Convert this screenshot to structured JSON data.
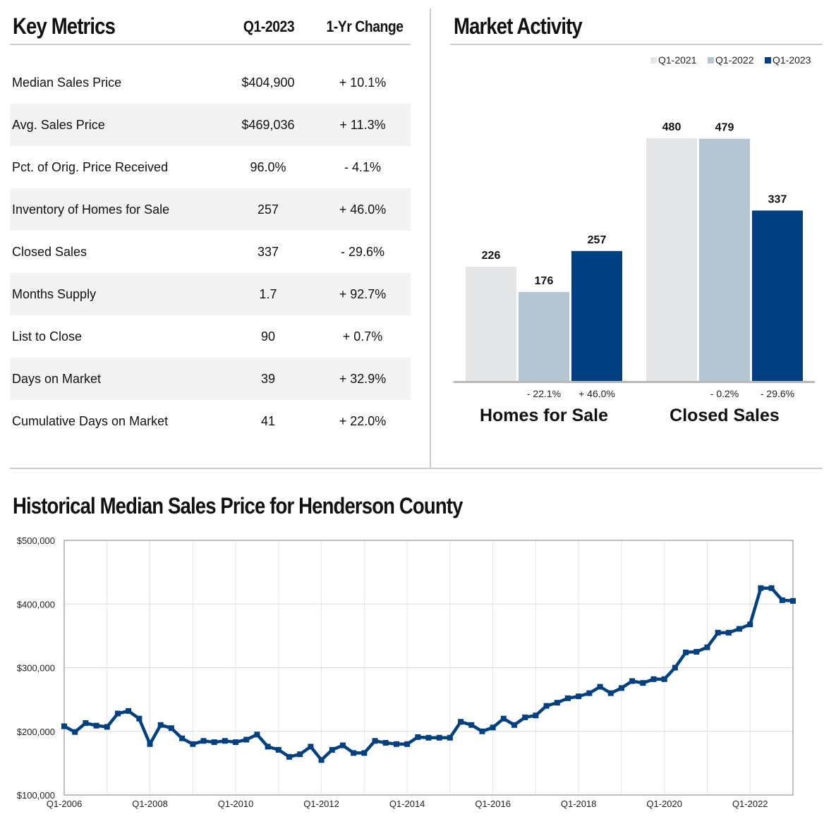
{
  "key_metrics": {
    "title": "Key Metrics",
    "col_period": "Q1-2023",
    "col_change": "1-Yr Change",
    "rows": [
      {
        "metric": "Median Sales Price",
        "value": "$404,900",
        "change": "+ 10.1%"
      },
      {
        "metric": "Avg. Sales Price",
        "value": "$469,036",
        "change": "+ 11.3%"
      },
      {
        "metric": "Pct. of Orig. Price Received",
        "value": "96.0%",
        "change": "- 4.1%"
      },
      {
        "metric": "Inventory of Homes for Sale",
        "value": "257",
        "change": "+ 46.0%"
      },
      {
        "metric": "Closed Sales",
        "value": "337",
        "change": "- 29.6%"
      },
      {
        "metric": "Months Supply",
        "value": "1.7",
        "change": "+ 92.7%"
      },
      {
        "metric": "List to Close",
        "value": "90",
        "change": "+ 0.7%"
      },
      {
        "metric": "Days on Market",
        "value": "39",
        "change": "+ 32.9%"
      },
      {
        "metric": "Cumulative Days on Market",
        "value": "41",
        "change": "+ 22.0%"
      }
    ]
  },
  "market_activity": {
    "title": "Market Activity"
  },
  "history": {
    "title": "Historical Median Sales Price for Henderson County"
  },
  "chart_data": [
    {
      "type": "bar",
      "categories": [
        "Homes for Sale",
        "Closed Sales"
      ],
      "series": [
        {
          "name": "Q1-2021",
          "values": [
            226,
            480
          ],
          "color": "#e4e6e8"
        },
        {
          "name": "Q1-2022",
          "values": [
            176,
            479
          ],
          "color": "#b5c6d3"
        },
        {
          "name": "Q1-2023",
          "values": [
            257,
            337
          ],
          "color": "#004080"
        }
      ],
      "changes": [
        [
          "- 22.1%",
          "+ 46.0%"
        ],
        [
          "- 0.2%",
          "- 29.6%"
        ]
      ],
      "ylim": [
        0,
        480
      ],
      "legend": "top-right"
    },
    {
      "type": "line",
      "ylim": [
        100000,
        500000
      ],
      "yticks": [
        "$100,000",
        "$200,000",
        "$300,000",
        "$400,000",
        "$500,000"
      ],
      "yticks_values": [
        100000,
        200000,
        300000,
        400000,
        500000
      ],
      "xticks": [
        "Q1-2006",
        "Q1-2008",
        "Q1-2010",
        "Q1-2012",
        "Q1-2014",
        "Q1-2016",
        "Q1-2018",
        "Q1-2020",
        "Q1-2022"
      ],
      "grid": true,
      "color": "#004080",
      "x": [
        "Q1-2006",
        "Q2-2006",
        "Q3-2006",
        "Q4-2006",
        "Q1-2007",
        "Q2-2007",
        "Q3-2007",
        "Q4-2007",
        "Q1-2008",
        "Q2-2008",
        "Q3-2008",
        "Q4-2008",
        "Q1-2009",
        "Q2-2009",
        "Q3-2009",
        "Q4-2009",
        "Q1-2010",
        "Q2-2010",
        "Q3-2010",
        "Q4-2010",
        "Q1-2011",
        "Q2-2011",
        "Q3-2011",
        "Q4-2011",
        "Q1-2012",
        "Q2-2012",
        "Q3-2012",
        "Q4-2012",
        "Q1-2013",
        "Q2-2013",
        "Q3-2013",
        "Q4-2013",
        "Q1-2014",
        "Q2-2014",
        "Q3-2014",
        "Q4-2014",
        "Q1-2015",
        "Q2-2015",
        "Q3-2015",
        "Q4-2015",
        "Q1-2016",
        "Q2-2016",
        "Q3-2016",
        "Q4-2016",
        "Q1-2017",
        "Q2-2017",
        "Q3-2017",
        "Q4-2017",
        "Q1-2018",
        "Q2-2018",
        "Q3-2018",
        "Q4-2018",
        "Q1-2019",
        "Q2-2019",
        "Q3-2019",
        "Q4-2019",
        "Q1-2020",
        "Q2-2020",
        "Q3-2020",
        "Q4-2020",
        "Q1-2021",
        "Q2-2021",
        "Q3-2021",
        "Q4-2021",
        "Q1-2022",
        "Q2-2022",
        "Q3-2022",
        "Q4-2022",
        "Q1-2023"
      ],
      "values": [
        208000,
        199000,
        213000,
        209000,
        207000,
        228000,
        232000,
        220000,
        180000,
        210000,
        205000,
        189000,
        180000,
        185000,
        183000,
        185000,
        183000,
        187000,
        195000,
        176000,
        171000,
        160000,
        164000,
        176000,
        155000,
        171000,
        178000,
        166000,
        166000,
        185000,
        182000,
        180000,
        180000,
        191000,
        190000,
        190000,
        190000,
        215000,
        210000,
        200000,
        206000,
        220000,
        210000,
        222000,
        225000,
        240000,
        245000,
        252000,
        255000,
        260000,
        270000,
        260000,
        268000,
        279000,
        276000,
        282000,
        282000,
        300000,
        324000,
        325000,
        332000,
        355000,
        355000,
        361000,
        368000,
        425000,
        425000,
        406000,
        404900
      ]
    }
  ]
}
